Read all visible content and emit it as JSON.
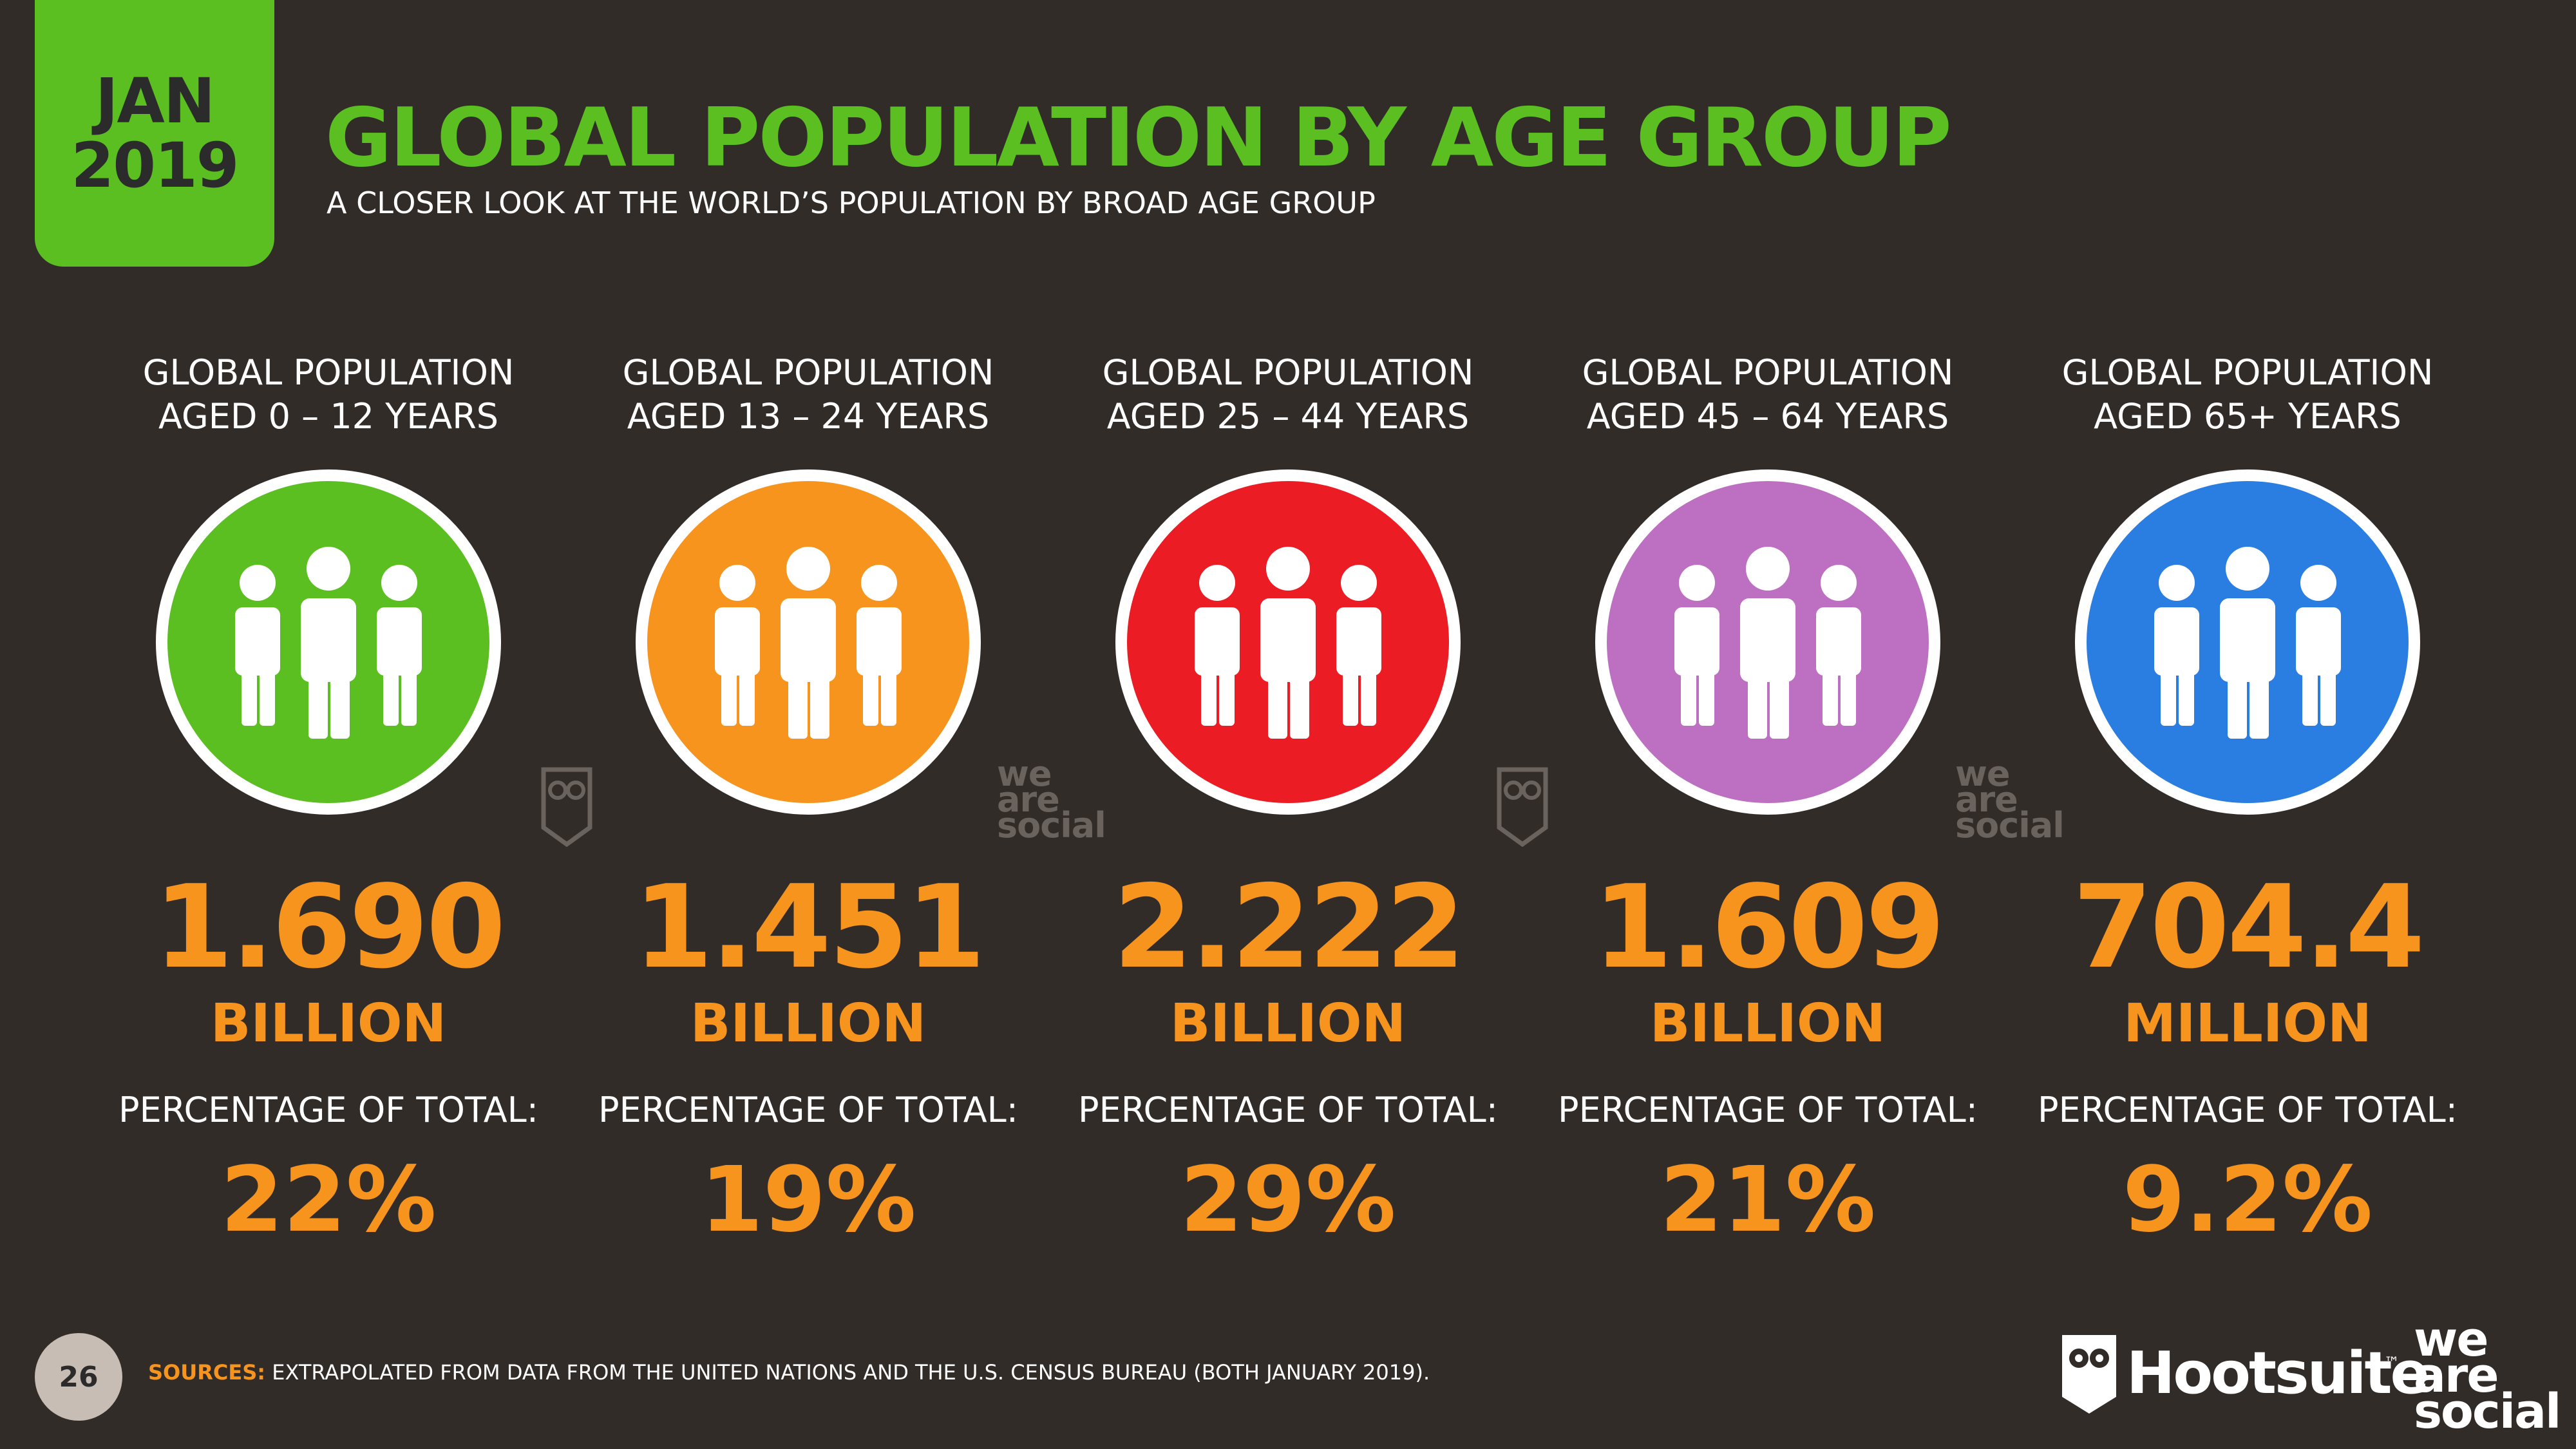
{
  "badge": {
    "month": "JAN",
    "year": "2019"
  },
  "title": "GLOBAL POPULATION BY AGE GROUP",
  "subtitle": "A CLOSER LOOK AT THE WORLD’S POPULATION BY BROAD AGE GROUP",
  "groups": [
    {
      "label_line1": "GLOBAL POPULATION",
      "label_line2": "AGED 0 – 12 YEARS",
      "value": "1.690",
      "unit": "BILLION",
      "pct_label": "PERCENTAGE OF TOTAL:",
      "pct": "22%",
      "color": "#5bbf21",
      "icon": "people-group-icon"
    },
    {
      "label_line1": "GLOBAL POPULATION",
      "label_line2": "AGED 13 – 24 YEARS",
      "value": "1.451",
      "unit": "BILLION",
      "pct_label": "PERCENTAGE OF TOTAL:",
      "pct": "19%",
      "color": "#f7941d",
      "icon": "people-group-icon"
    },
    {
      "label_line1": "GLOBAL POPULATION",
      "label_line2": "AGED 25 – 44 YEARS",
      "value": "2.222",
      "unit": "BILLION",
      "pct_label": "PERCENTAGE OF TOTAL:",
      "pct": "29%",
      "color": "#ec1c24",
      "icon": "people-group-icon"
    },
    {
      "label_line1": "GLOBAL POPULATION",
      "label_line2": "AGED 45 – 64 YEARS",
      "value": "1.609",
      "unit": "BILLION",
      "pct_label": "PERCENTAGE OF TOTAL:",
      "pct": "21%",
      "color": "#bd6fc1",
      "icon": "people-group-icon"
    },
    {
      "label_line1": "GLOBAL POPULATION",
      "label_line2": "AGED 65+ YEARS",
      "value": "704.4",
      "unit": "MILLION",
      "pct_label": "PERCENTAGE OF TOTAL:",
      "pct": "9.2%",
      "color": "#2a7de1",
      "icon": "people-group-icon"
    }
  ],
  "watermark": {
    "line1": "we",
    "line2": "are",
    "line3": "social"
  },
  "footer": {
    "page_number": "26",
    "sources_label": "SOURCES:",
    "sources_text": "EXTRAPOLATED FROM DATA FROM THE UNITED NATIONS AND THE U.S. CENSUS BUREAU (BOTH JANUARY 2019).",
    "hootsuite": "Hootsuite",
    "tm": "™",
    "was_line1": "we",
    "was_line2": "are",
    "was_line3": "social"
  }
}
